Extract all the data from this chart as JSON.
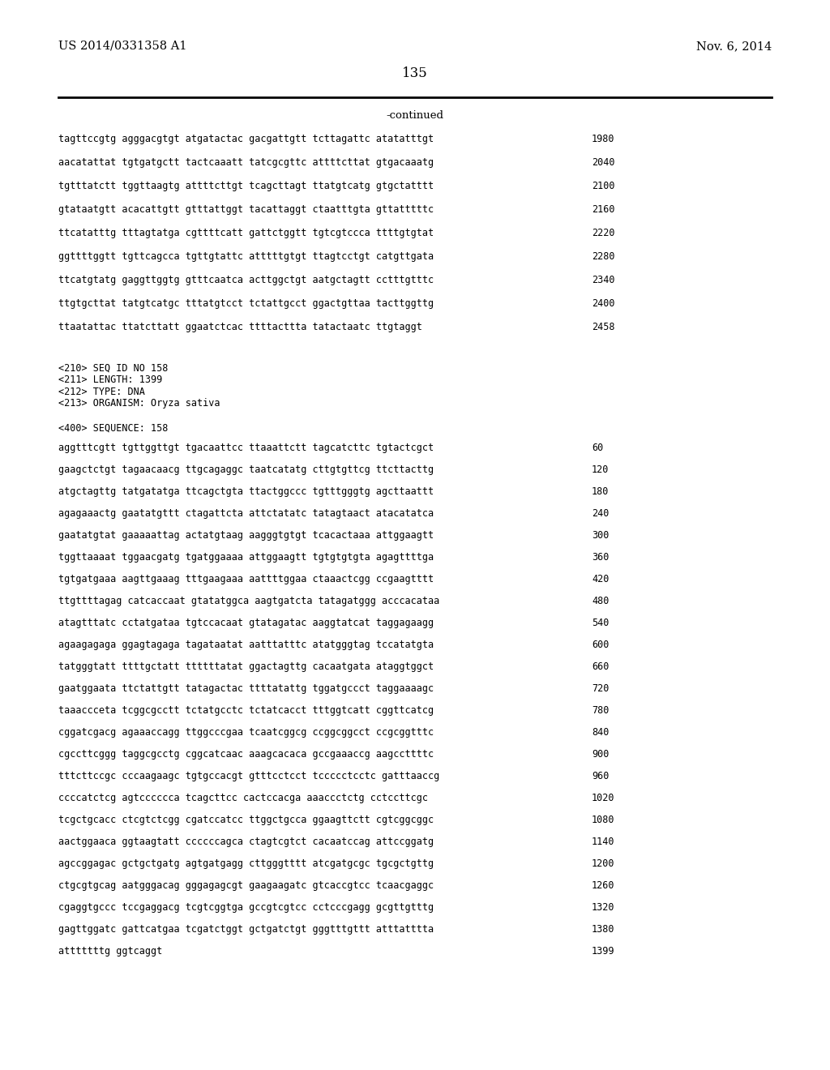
{
  "top_left": "US 2014/0331358 A1",
  "top_right": "Nov. 6, 2014",
  "page_number": "135",
  "continued": "-continued",
  "background_color": "#ffffff",
  "text_color": "#000000",
  "sequence_lines_top": [
    [
      "tagttccgtg agggacgtgt atgatactac gacgattgtt tcttagattc atatatttgt",
      "1980"
    ],
    [
      "aacatattat tgtgatgctt tactcaaatt tatcgcgttc attttcttat gtgacaaatg",
      "2040"
    ],
    [
      "tgtttatctt tggttaagtg attttcttgt tcagcttagt ttatgtcatg gtgctatttt",
      "2100"
    ],
    [
      "gtataatgtt acacattgtt gtttattggt tacattaggt ctaatttgta gttatttttc",
      "2160"
    ],
    [
      "ttcatatttg tttagtatga cgttttcatt gattctggtt tgtcgtccca ttttgtgtat",
      "2220"
    ],
    [
      "ggttttggtt tgttcagcca tgttgtattc atttttgtgt ttagtcctgt catgttgata",
      "2280"
    ],
    [
      "ttcatgtatg gaggttggtg gtttcaatca acttggctgt aatgctagtt cctttgtttc",
      "2340"
    ],
    [
      "ttgtgcttat tatgtcatgc tttatgtcct tctattgcct ggactgttaa tacttggttg",
      "2400"
    ],
    [
      "ttaatattac ttatcttatt ggaatctcac ttttacttta tatactaatc ttgtaggt",
      "2458"
    ]
  ],
  "metadata_lines": [
    "<210> SEQ ID NO 158",
    "<211> LENGTH: 1399",
    "<212> TYPE: DNA",
    "<213> ORGANISM: Oryza sativa"
  ],
  "sequence_label": "<400> SEQUENCE: 158",
  "sequence_lines_bottom": [
    [
      "aggtttcgtt tgttggttgt tgacaattcc ttaaattctt tagcatcttc tgtactcgct",
      "60"
    ],
    [
      "gaagctctgt tagaacaacg ttgcagaggc taatcatatg cttgtgttcg ttcttacttg",
      "120"
    ],
    [
      "atgctagttg tatgatatga ttcagctgta ttactggccc tgtttgggtg agcttaattt",
      "180"
    ],
    [
      "agagaaactg gaatatgttt ctagattcta attctatatc tatagtaact atacatatca",
      "240"
    ],
    [
      "gaatatgtat gaaaaattag actatgtaag aagggtgtgt tcacactaaa attggaagtt",
      "300"
    ],
    [
      "tggttaaaat tggaacgatg tgatggaaaa attggaagtt tgtgtgtgta agagttttga",
      "360"
    ],
    [
      "tgtgatgaaa aagttgaaag tttgaagaaa aattttggaa ctaaactcgg ccgaagtttt",
      "420"
    ],
    [
      "ttgttttagag catcaccaat gtatatggca aagtgatcta tatagatggg acccacataa",
      "480"
    ],
    [
      "atagtttatc cctatgataa tgtccacaat gtatagatac aaggtatcat taggagaagg",
      "540"
    ],
    [
      "agaagagaga ggagtagaga tagataatat aatttatttc atatgggtag tccatatgta",
      "600"
    ],
    [
      "tatgggtatt ttttgctatt ttttttatat ggactagttg cacaatgata ataggtggct",
      "660"
    ],
    [
      "gaatggaata ttctattgtt tatagactac ttttatattg tggatgccct taggaaaagc",
      "720"
    ],
    [
      "taaaccceta tcggcgcctt tctatgcctc tctatcacct tttggtcatt cggttcatcg",
      "780"
    ],
    [
      "cggatcgacg agaaaccagg ttggcccgaa tcaatcggcg ccggcggcct ccgcggtttc",
      "840"
    ],
    [
      "cgccttcggg taggcgcctg cggcatcaac aaagcacaca gccgaaaccg aagccttttc",
      "900"
    ],
    [
      "tttcttccgc cccaagaagc tgtgccacgt gtttcctcct tccccctcctc gatttaaccg",
      "960"
    ],
    [
      "ccccatctcg agtcccccca tcagcttcc cactccacga aaaccctctg cctccttcgc",
      "1020"
    ],
    [
      "tcgctgcacc ctcgtctcgg cgatccatcc ttggctgcca ggaagttctt cgtcggcggc",
      "1080"
    ],
    [
      "aactggaaca ggtaagtatt ccccccagca ctagtcgtct cacaatccag attccggatg",
      "1140"
    ],
    [
      "agccggagac gctgctgatg agtgatgagg cttgggtttt atcgatgcgc tgcgctgttg",
      "1200"
    ],
    [
      "ctgcgtgcag aatgggacag gggagagcgt gaagaagatc gtcaccgtcc tcaacgaggc",
      "1260"
    ],
    [
      "cgaggtgccc tccgaggacg tcgtcggtga gccgtcgtcc cctcccgagg gcgttgtttg",
      "1320"
    ],
    [
      "gagttggatc gattcatgaa tcgatctggt gctgatctgt gggtttgttt atttatttta",
      "1380"
    ],
    [
      "atttttttg ggtcaggt",
      "1399"
    ]
  ]
}
